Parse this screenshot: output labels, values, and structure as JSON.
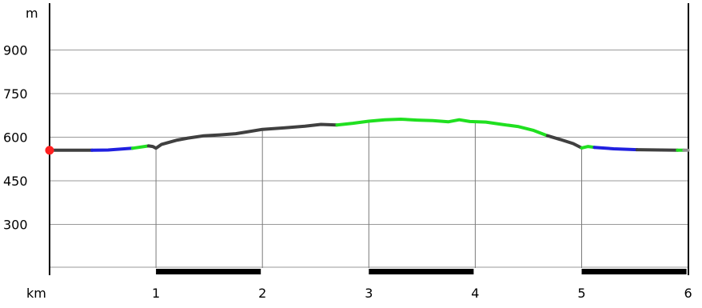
{
  "chart_data": {
    "type": "line",
    "y_unit": "m",
    "x_unit": "km",
    "ylim": [
      150,
      1050
    ],
    "xlim": [
      -0.05,
      6.02
    ],
    "y_ticks": [
      300,
      450,
      600,
      750,
      900
    ],
    "x_ticks": [
      1,
      2,
      3,
      4,
      5,
      6
    ],
    "grid": true,
    "start_marker_color": "#ff2020",
    "km_band": [
      {
        "start": 1,
        "end": 2
      },
      {
        "start": 3,
        "end": 4
      },
      {
        "start": 5,
        "end": 6
      }
    ],
    "segments": [
      {
        "color": "#404040",
        "points": [
          [
            0,
            555
          ],
          [
            0.4,
            555
          ]
        ]
      },
      {
        "color": "#2020e0",
        "points": [
          [
            0.4,
            555
          ],
          [
            0.55,
            556
          ],
          [
            0.78,
            562
          ]
        ]
      },
      {
        "color": "#20e020",
        "points": [
          [
            0.78,
            562
          ],
          [
            0.93,
            570
          ]
        ]
      },
      {
        "color": "#404040",
        "points": [
          [
            0.93,
            570
          ],
          [
            0.97,
            568
          ],
          [
            1.0,
            562
          ],
          [
            1.05,
            575
          ],
          [
            1.2,
            590
          ],
          [
            1.3,
            597
          ],
          [
            1.45,
            605
          ],
          [
            1.6,
            608
          ],
          [
            1.75,
            612
          ],
          [
            1.85,
            618
          ],
          [
            2.0,
            627
          ],
          [
            2.2,
            632
          ],
          [
            2.4,
            638
          ],
          [
            2.55,
            644
          ],
          [
            2.7,
            642
          ]
        ]
      },
      {
        "color": "#20e020",
        "points": [
          [
            2.7,
            642
          ],
          [
            2.85,
            648
          ],
          [
            3.0,
            655
          ],
          [
            3.15,
            660
          ],
          [
            3.3,
            662
          ],
          [
            3.45,
            659
          ],
          [
            3.6,
            657
          ],
          [
            3.75,
            653
          ],
          [
            3.85,
            660
          ],
          [
            3.95,
            654
          ],
          [
            4.1,
            652
          ],
          [
            4.25,
            644
          ],
          [
            4.4,
            637
          ],
          [
            4.55,
            623
          ],
          [
            4.68,
            605
          ]
        ]
      },
      {
        "color": "#404040",
        "points": [
          [
            4.68,
            605
          ],
          [
            4.8,
            592
          ],
          [
            4.92,
            578
          ],
          [
            5.0,
            563
          ]
        ]
      },
      {
        "color": "#20e020",
        "points": [
          [
            5.0,
            563
          ],
          [
            5.06,
            568
          ],
          [
            5.12,
            565
          ]
        ]
      },
      {
        "color": "#2020e0",
        "points": [
          [
            5.12,
            565
          ],
          [
            5.3,
            560
          ],
          [
            5.52,
            557
          ]
        ]
      },
      {
        "color": "#404040",
        "points": [
          [
            5.52,
            557
          ],
          [
            5.9,
            555
          ]
        ]
      },
      {
        "color": "#20e020",
        "points": [
          [
            5.9,
            555
          ],
          [
            5.96,
            555
          ]
        ]
      },
      {
        "color": "#909090",
        "points": [
          [
            5.96,
            555
          ],
          [
            6.0,
            555
          ]
        ]
      }
    ]
  }
}
